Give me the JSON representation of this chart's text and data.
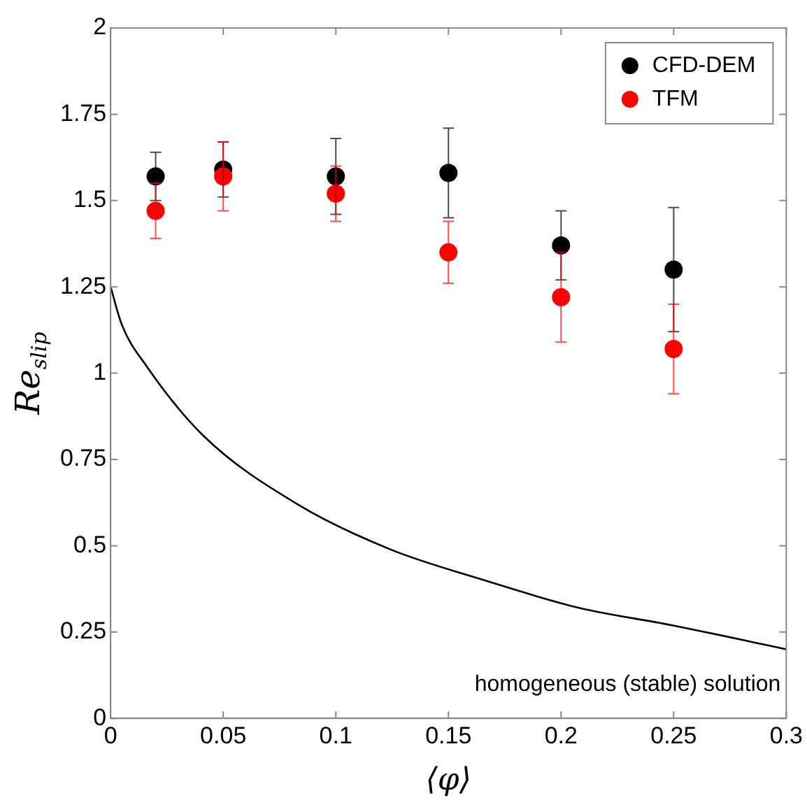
{
  "chart_data": {
    "type": "scatter",
    "xlabel": "⟨φ⟩",
    "ylabel": "Re$_{slip}$",
    "xlim": [
      0,
      0.3
    ],
    "xticks": [
      0,
      0.05,
      0.1,
      0.15,
      0.2,
      0.25,
      0.3
    ],
    "ylim": [
      0,
      2
    ],
    "yticks": [
      0,
      0.25,
      0.5,
      0.75,
      1,
      1.25,
      1.5,
      1.75,
      2
    ],
    "grid": false,
    "legend": "top right",
    "marker": "circle",
    "series": [
      {
        "name": "CFD-DEM",
        "color": "#000000",
        "x": [
          0.02,
          0.05,
          0.1,
          0.15,
          0.2,
          0.25
        ],
        "values": [
          1.57,
          1.59,
          1.57,
          1.58,
          1.37,
          1.3
        ],
        "errors": [
          0.07,
          0.08,
          0.11,
          0.13,
          0.1,
          0.18
        ]
      },
      {
        "name": "TFM",
        "color": "#ff0000",
        "x": [
          0.02,
          0.05,
          0.1,
          0.15,
          0.2,
          0.25
        ],
        "values": [
          1.47,
          1.57,
          1.52,
          1.35,
          1.22,
          1.07
        ],
        "errors": [
          0.08,
          0.1,
          0.08,
          0.09,
          0.13,
          0.13
        ]
      },
      {
        "type": "line",
        "color": "#000000",
        "marker": "none",
        "x": [
          0,
          0.005,
          0.016,
          0.041,
          0.083,
          0.124,
          0.166,
          0.208,
          0.249,
          0.3
        ],
        "values": [
          1.25,
          1.14,
          1.02,
          0.82,
          0.62,
          0.49,
          0.4,
          0.32,
          0.27,
          0.2
        ]
      }
    ],
    "annotations": [
      "homogeneous (stable) solution"
    ]
  }
}
